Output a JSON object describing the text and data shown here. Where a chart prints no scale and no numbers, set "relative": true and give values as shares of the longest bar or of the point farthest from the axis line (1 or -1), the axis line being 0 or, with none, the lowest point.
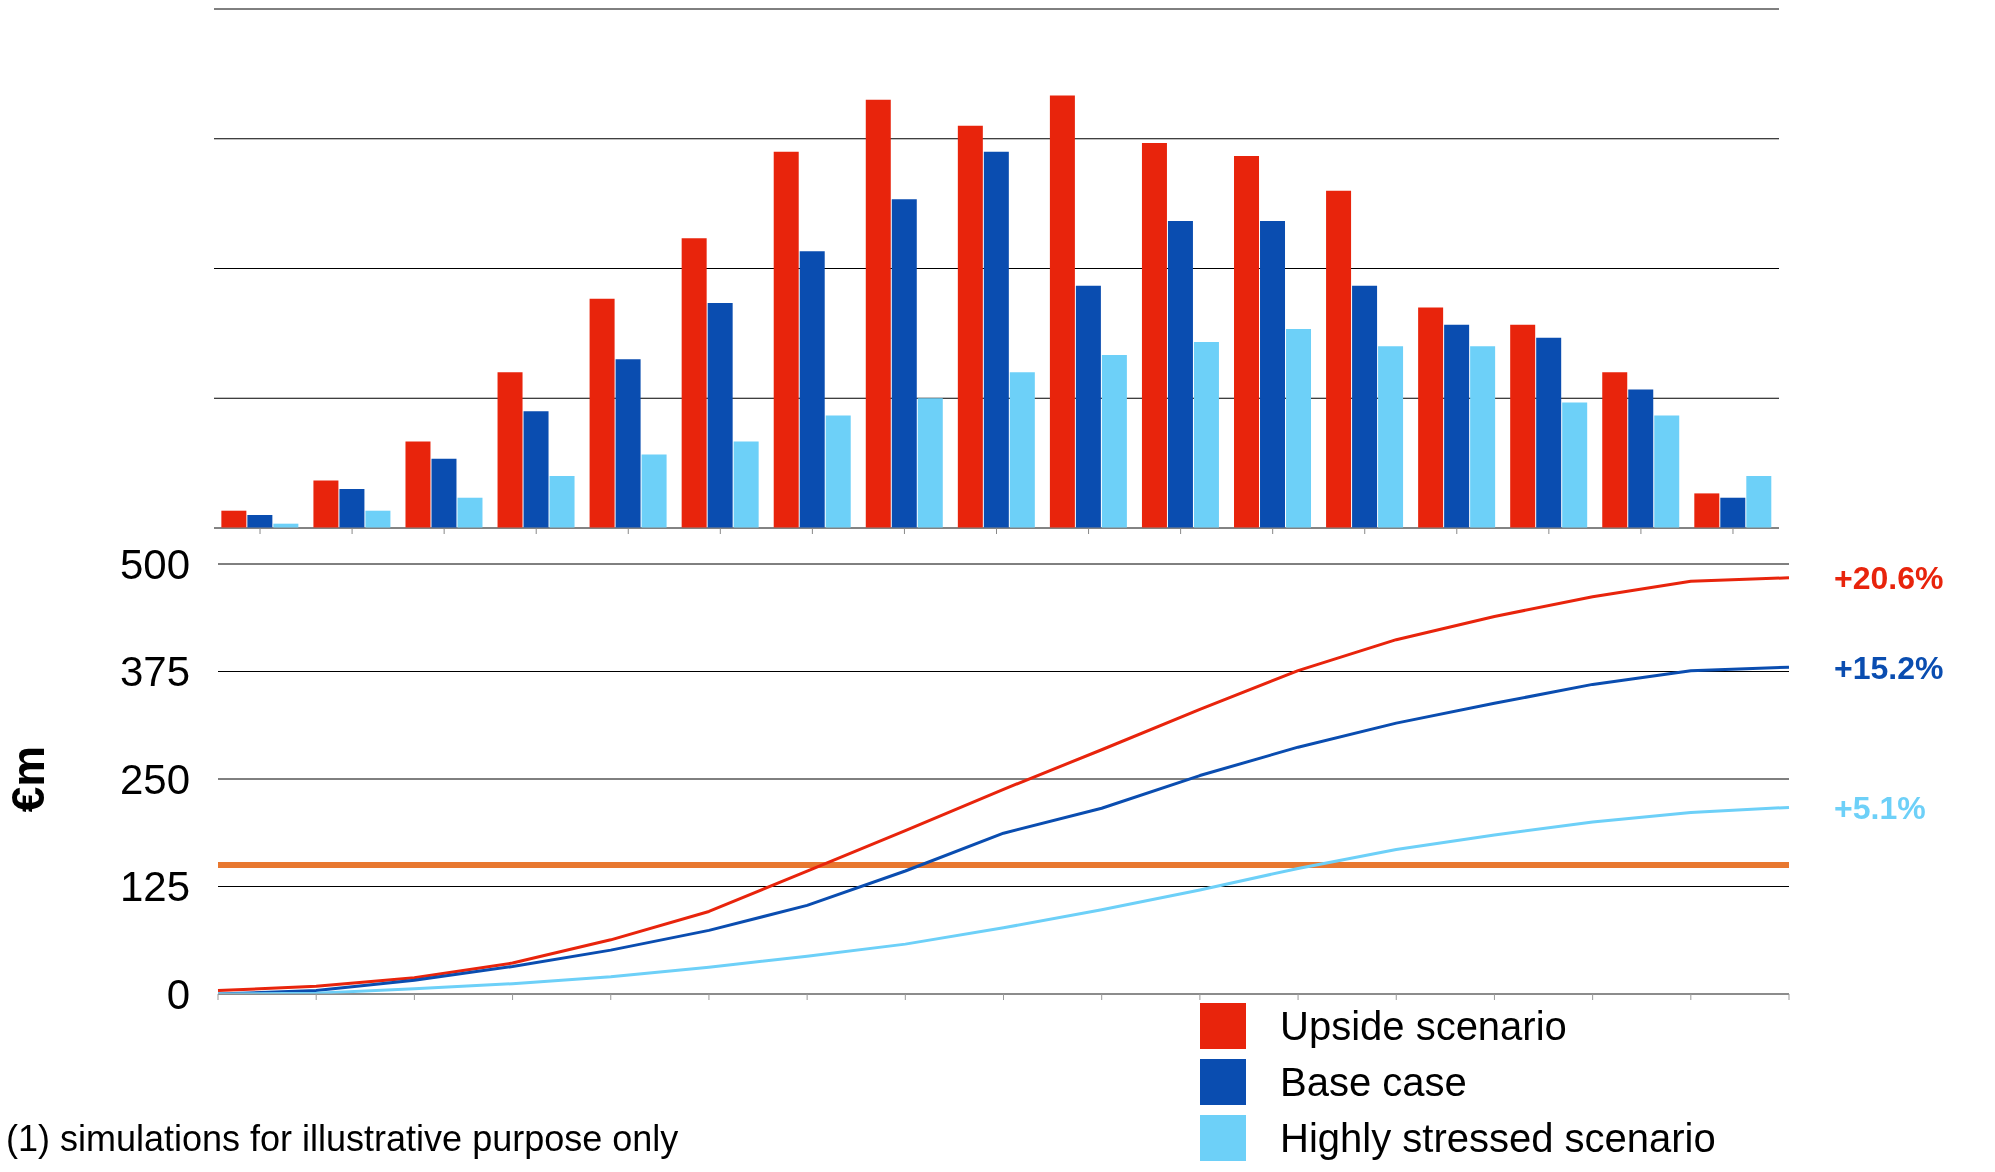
{
  "chart_data": [
    {
      "type": "bar",
      "relative": true,
      "grid": "y",
      "legend": false,
      "tick_labels": false,
      "categories": [
        null,
        null,
        null,
        null,
        null,
        null,
        null,
        null,
        null,
        null,
        null,
        null,
        null,
        null,
        null,
        null,
        null
      ],
      "series": [
        {
          "color": "#e8240c",
          "values": [
            0.04,
            0.11,
            0.2,
            0.36,
            0.53,
            0.67,
            0.87,
            0.99,
            0.93,
            1,
            0.89,
            0.86,
            0.78,
            0.51,
            0.47,
            0.36,
            0.08
          ]
        },
        {
          "color": "#0a4db0",
          "values": [
            0.03,
            0.09,
            0.16,
            0.27,
            0.39,
            0.52,
            0.64,
            0.76,
            0.87,
            0.56,
            0.71,
            0.71,
            0.56,
            0.47,
            0.44,
            0.32,
            0.07
          ]
        },
        {
          "color": "#6dd0f8",
          "values": [
            0.01,
            0.04,
            0.07,
            0.12,
            0.17,
            0.2,
            0.26,
            0.3,
            0.36,
            0.4,
            0.43,
            0.46,
            0.42,
            0.42,
            0.29,
            0.26,
            0.12
          ]
        }
      ]
    },
    {
      "type": "line",
      "ylabel": "€m",
      "ylim": [
        0,
        500
      ],
      "yticks": [
        0,
        125,
        250,
        375,
        500
      ],
      "grid": "y",
      "legend": "bottom right",
      "tick_labels": "y",
      "marker": "none",
      "line_style": "solid",
      "categories": [
        null,
        null,
        null,
        null,
        null,
        null,
        null,
        null,
        null,
        null,
        null,
        null,
        null,
        null,
        null,
        null,
        null
      ],
      "series": [
        {
          "name": "Upside scenario",
          "color": "#e8240c",
          "values": [
            4,
            9,
            19,
            36,
            63,
            96,
            143,
            190,
            238,
            284,
            331,
            376,
            412,
            439,
            462,
            480,
            484
          ]
        },
        {
          "name": "Base case",
          "color": "#0a4db0",
          "values": [
            0,
            4,
            16,
            32,
            51,
            74,
            103,
            143,
            187,
            216,
            254,
            287,
            315,
            338,
            360,
            376,
            380
          ]
        },
        {
          "name": "Highly stressed scenario",
          "color": "#6dd0f8",
          "values": [
            0,
            1,
            6,
            12,
            20,
            31,
            44,
            58,
            77,
            98,
            121,
            146,
            168,
            185,
            200,
            211,
            217
          ]
        }
      ],
      "ref_lines": [
        {
          "axis": "y",
          "value": 150,
          "color": "#e87830"
        }
      ],
      "annotations": [
        "+20.6%",
        "+15.2%",
        "+5.1%",
        "(1) simulations for illustrative purpose only"
      ]
    }
  ]
}
